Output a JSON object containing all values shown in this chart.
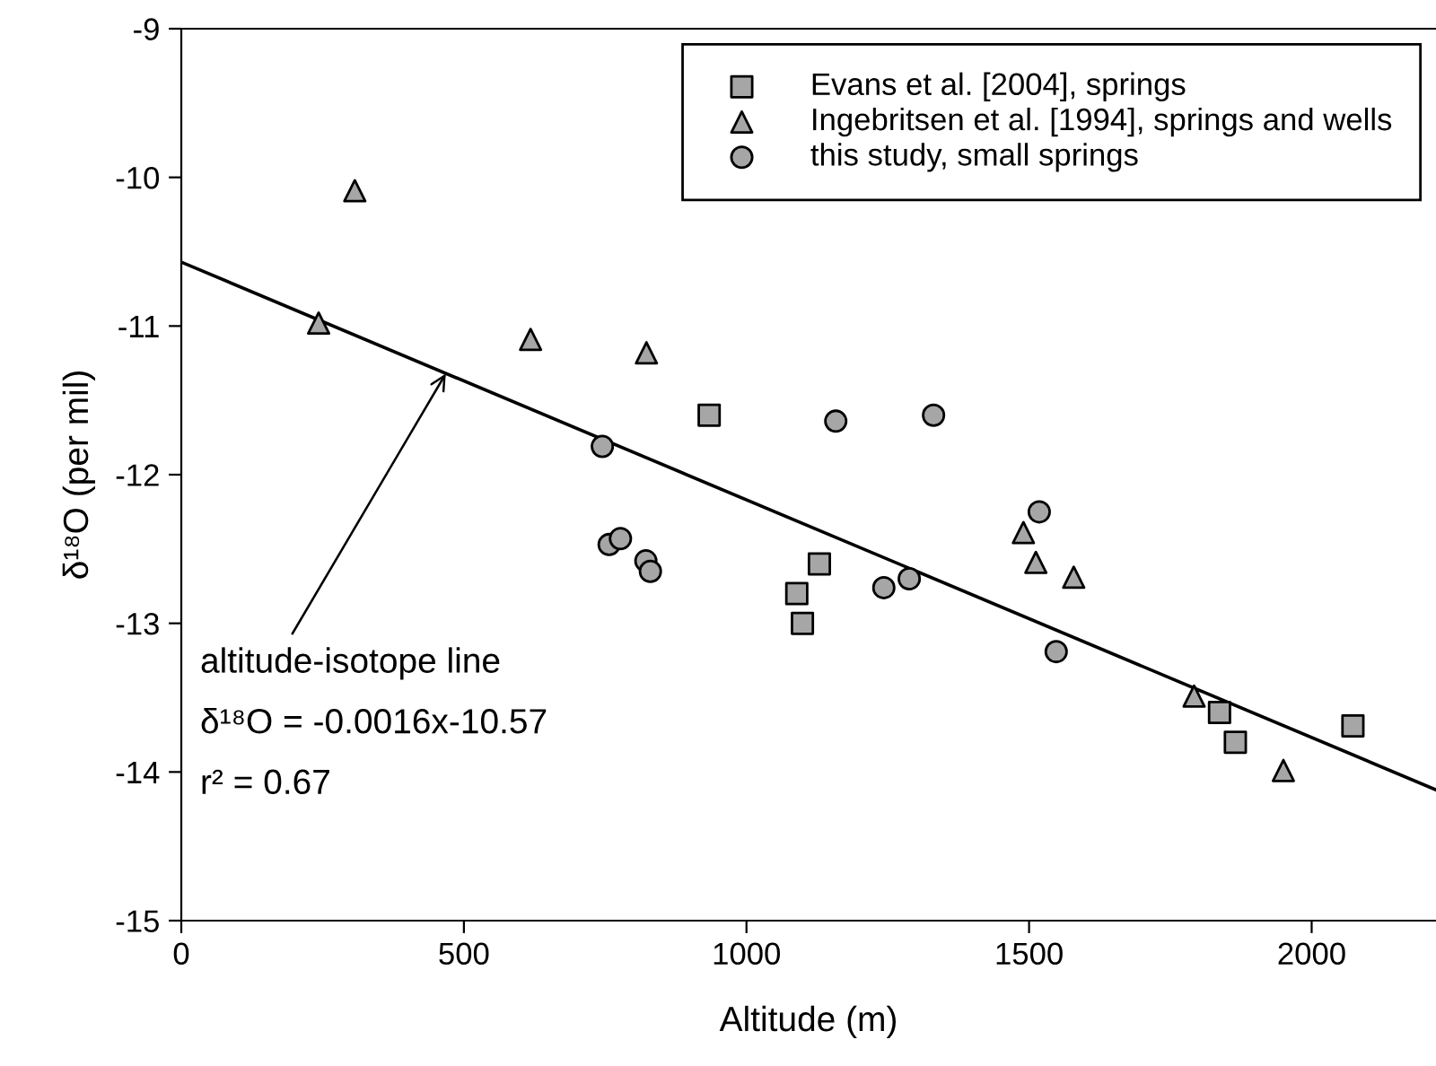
{
  "chart_data": {
    "type": "scatter",
    "xlabel": "Altitude (m)",
    "ylabel": "δ¹⁸O (per mil)",
    "xlim": [
      0,
      2220
    ],
    "ylim": [
      -15,
      -9
    ],
    "xticks": [
      0,
      500,
      1000,
      1500,
      2000
    ],
    "yticks": [
      -15,
      -14,
      -13,
      -12,
      -11,
      -10,
      -9
    ],
    "grid": false,
    "legend": "top right",
    "series": [
      {
        "name": "Evans et al. [2004], springs",
        "color": "#a6a6a6",
        "marker": "square",
        "x": [
          934,
          1129,
          1089,
          1099,
          1837,
          1865,
          2073
        ],
        "values": [
          -11.6,
          -12.6,
          -12.8,
          -13.0,
          -13.6,
          -13.8,
          -13.69
        ]
      },
      {
        "name": "Ingebritsen et al. [1994], springs and wells",
        "color": "#a6a6a6",
        "marker": "triangle",
        "x": [
          243,
          307,
          618,
          823,
          1490,
          1512,
          1579,
          1792,
          1950
        ],
        "values": [
          -10.98,
          -10.09,
          -11.09,
          -11.18,
          -12.39,
          -12.59,
          -12.69,
          -13.49,
          -13.99
        ]
      },
      {
        "name": "this study, small springs",
        "color": "#a6a6a6",
        "marker": "circle",
        "x": [
          745,
          757,
          777,
          822,
          830,
          1158,
          1331,
          1518,
          1243,
          1288,
          1548
        ],
        "values": [
          -11.81,
          -12.47,
          -12.43,
          -12.58,
          -12.65,
          -11.64,
          -11.6,
          -12.25,
          -12.76,
          -12.7,
          -13.19
        ]
      },
      {
        "type": "line",
        "color": "#000000",
        "marker": "none",
        "line_style": "solid",
        "x": [
          0,
          2220
        ],
        "values": [
          -10.57,
          -14.12
        ]
      }
    ],
    "annotations": [
      {
        "text": "altitude-isotope line",
        "x": 468,
        "y": -11.32
      },
      "δ¹⁸O = -0.0016x-10.57",
      "r² = 0.67"
    ]
  }
}
